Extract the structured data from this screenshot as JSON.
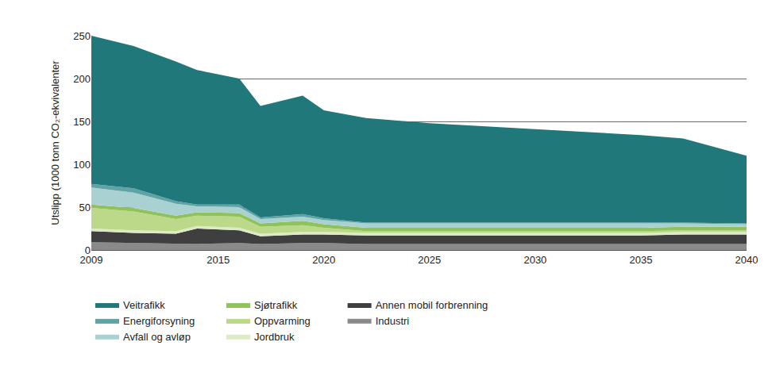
{
  "chart_data": {
    "type": "area",
    "stacked": true,
    "grid": true,
    "y_label": "Utslipp (1000 tonn CO₂-ekvivalenter",
    "x": [
      2009,
      2011,
      2013,
      2014,
      2016,
      2017,
      2019,
      2020,
      2022,
      2025,
      2030,
      2035,
      2037,
      2040
    ],
    "xlim": [
      2009,
      2040
    ],
    "xticks": [
      2009,
      2015,
      2020,
      2025,
      2030,
      2035,
      2040
    ],
    "ylim": [
      0,
      250
    ],
    "yticks": [
      0,
      50,
      100,
      150,
      200,
      250
    ],
    "legend": "bottom",
    "series": [
      {
        "name": "Veitrafikk",
        "color": "#21787a",
        "values": [
          173,
          166,
          163,
          157,
          147,
          130,
          138,
          126,
          122,
          116,
          109,
          102,
          98,
          79
        ]
      },
      {
        "name": "Energiforsyning",
        "color": "#5fa3a5",
        "values": [
          4,
          5,
          3,
          2,
          3,
          2,
          3,
          2,
          1,
          1,
          1,
          1,
          1,
          1
        ]
      },
      {
        "name": "Avfall og avløp",
        "color": "#a9d1d1",
        "values": [
          20,
          18,
          14,
          7,
          7,
          5,
          5,
          5,
          5,
          5,
          5,
          5,
          4,
          3
        ]
      },
      {
        "name": "Sjøtrafikk",
        "color": "#8fc25a",
        "values": [
          4,
          4,
          4,
          4,
          4,
          4,
          5,
          4,
          4,
          4,
          4,
          4,
          4,
          4
        ]
      },
      {
        "name": "Oppvarming",
        "color": "#bcd98a",
        "values": [
          24,
          22,
          14,
          12,
          13,
          8,
          8,
          5,
          2,
          2,
          2,
          2,
          2,
          2
        ]
      },
      {
        "name": "Jordbruk",
        "color": "#dcebc4",
        "values": [
          3,
          3,
          3,
          3,
          3,
          3,
          3,
          3,
          3,
          3,
          3,
          3,
          3,
          3
        ]
      },
      {
        "name": "Annen mobil forbrenning",
        "color": "#3f3f3f",
        "values": [
          13,
          12,
          12,
          18,
          15,
          9,
          10,
          10,
          10,
          10,
          10,
          10,
          11,
          11
        ]
      },
      {
        "name": "Industri",
        "color": "#8a8a8a",
        "values": [
          9,
          8,
          7,
          7,
          8,
          7,
          8,
          8,
          7,
          7,
          7,
          7,
          7,
          7
        ]
      }
    ]
  }
}
